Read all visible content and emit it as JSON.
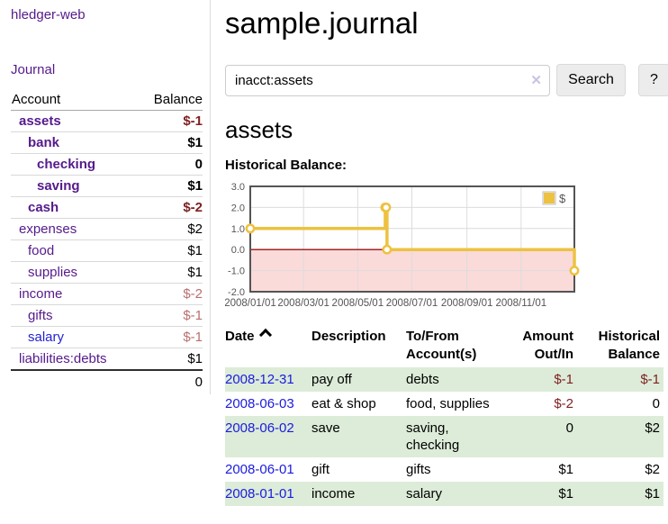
{
  "app_title": "hledger-web",
  "sidebar": {
    "nav_journal": "Journal",
    "accounts_table": {
      "col_account": "Account",
      "col_balance": "Balance",
      "rows": [
        {
          "account": "assets",
          "balance": "$-1",
          "level": 0,
          "bold": true,
          "neg": "strong"
        },
        {
          "account": "bank",
          "balance": "$1",
          "level": 1,
          "bold": true,
          "neg": null
        },
        {
          "account": "checking",
          "balance": "0",
          "level": 2,
          "bold": true,
          "neg": null
        },
        {
          "account": "saving",
          "balance": "$1",
          "level": 2,
          "bold": true,
          "neg": null
        },
        {
          "account": "cash",
          "balance": "$-2",
          "level": 1,
          "bold": true,
          "neg": "strong"
        },
        {
          "account": "expenses",
          "balance": "$2",
          "level": 0,
          "bold": false,
          "neg": null
        },
        {
          "account": "food",
          "balance": "$1",
          "level": 1,
          "bold": false,
          "neg": null
        },
        {
          "account": "supplies",
          "balance": "$1",
          "level": 1,
          "bold": false,
          "neg": null
        },
        {
          "account": "income",
          "balance": "$-2",
          "level": 0,
          "bold": false,
          "neg": "soft"
        },
        {
          "account": "gifts",
          "balance": "$-1",
          "level": 1,
          "bold": false,
          "neg": "soft"
        },
        {
          "account": "salary",
          "balance": "$-1",
          "level": 1,
          "bold": false,
          "neg": "soft",
          "link_style": "unvisited"
        },
        {
          "account": "liabilities:debts",
          "balance": "$1",
          "level": 0,
          "bold": false,
          "neg": null
        }
      ],
      "total": "0"
    }
  },
  "main": {
    "title": "sample.journal",
    "search": {
      "value": "inacct:assets",
      "clear_icon": "✕",
      "search_button": "Search",
      "help_button": "?"
    },
    "account_heading": "assets",
    "chart_title": "Historical Balance:"
  },
  "chart_data": {
    "type": "line",
    "step": true,
    "title": "Historical Balance",
    "x_start": "2008-01-01",
    "x_end": "2008-12-31",
    "ylim": [
      -2,
      3
    ],
    "yticks": [
      3,
      2,
      1,
      0,
      -1,
      -2
    ],
    "xticks": [
      "2008/01/01",
      "2008/03/01",
      "2008/05/01",
      "2008/07/01",
      "2008/09/01",
      "2008/11/01"
    ],
    "xtick_dates": [
      "2008-01-01",
      "2008-03-01",
      "2008-05-01",
      "2008-07-01",
      "2008-09-01",
      "2008-11-01"
    ],
    "series": [
      {
        "name": "$",
        "color": "#edc240",
        "points": [
          {
            "date": "2008-01-01",
            "value": 1
          },
          {
            "date": "2008-06-01",
            "value": 2
          },
          {
            "date": "2008-06-02",
            "value": 2
          },
          {
            "date": "2008-06-03",
            "value": 0
          },
          {
            "date": "2008-12-31",
            "value": -1
          }
        ]
      }
    ],
    "legend": {
      "label": "$",
      "position": "top-right"
    },
    "negative_region_color": "#fbdada",
    "zero_line_color": "#991111",
    "grid": true
  },
  "register": {
    "headers": {
      "date": "Date",
      "description": "Description",
      "accounts": "To/From Account(s)",
      "amount": "Amount Out/In",
      "balance": "Historical Balance"
    },
    "rows": [
      {
        "date": "2008-12-31",
        "description": "pay off",
        "accounts": "debts",
        "amount": "$-1",
        "balance": "$-1",
        "amount_neg": true,
        "balance_neg": true
      },
      {
        "date": "2008-06-03",
        "description": "eat & shop",
        "accounts": "food, supplies",
        "amount": "$-2",
        "balance": "0",
        "amount_neg": true,
        "balance_neg": false
      },
      {
        "date": "2008-06-02",
        "description": "save",
        "accounts": "saving, checking",
        "amount": "0",
        "balance": "$2",
        "amount_neg": false,
        "balance_neg": false
      },
      {
        "date": "2008-06-01",
        "description": "gift",
        "accounts": "gifts",
        "amount": "$1",
        "balance": "$2",
        "amount_neg": false,
        "balance_neg": false
      },
      {
        "date": "2008-01-01",
        "description": "income",
        "accounts": "salary",
        "amount": "$1",
        "balance": "$1",
        "amount_neg": false,
        "balance_neg": false
      }
    ]
  },
  "colors": {
    "link_purple": "#551a8b",
    "link_blue": "#2323d3",
    "date_link_blue": "#1b1bdf",
    "negative_strong": "#7f2121",
    "negative_soft": "#b96f6f",
    "row_stripe_green": "#dcecd8",
    "chart_line_gold": "#edc240",
    "axis_text": "#545454"
  }
}
